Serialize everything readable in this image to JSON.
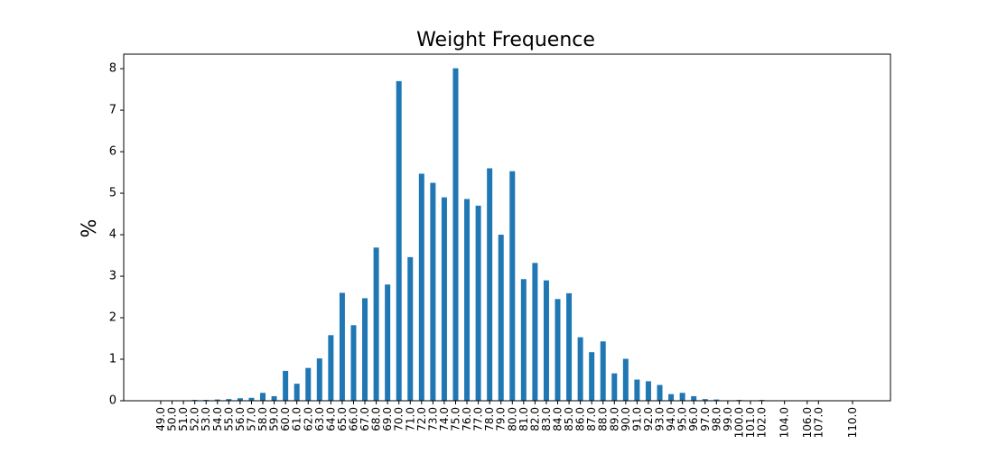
{
  "chart_data": {
    "type": "bar",
    "title": "Weight Frequence",
    "xlabel": "",
    "ylabel": "%",
    "ylim": [
      0,
      8.35
    ],
    "yticks": [
      "0",
      "1",
      "2",
      "3",
      "4",
      "5",
      "6",
      "7",
      "8"
    ],
    "grid": false,
    "legend": "none",
    "bar_color": "#1f77b4",
    "categories": [
      "49.0",
      "50.0",
      "51.0",
      "52.0",
      "53.0",
      "54.0",
      "55.0",
      "56.0",
      "57.0",
      "58.0",
      "59.0",
      "60.0",
      "61.0",
      "62.0",
      "63.0",
      "64.0",
      "65.0",
      "66.0",
      "67.0",
      "68.0",
      "69.0",
      "70.0",
      "71.0",
      "72.0",
      "73.0",
      "74.0",
      "75.0",
      "76.0",
      "77.0",
      "78.0",
      "79.0",
      "80.0",
      "81.0",
      "82.0",
      "83.0",
      "84.0",
      "85.0",
      "86.0",
      "87.0",
      "88.0",
      "89.0",
      "90.0",
      "91.0",
      "92.0",
      "93.0",
      "94.0",
      "95.0",
      "96.0",
      "97.0",
      "98.0",
      "99.0",
      "100.0",
      "101.0",
      "102.0",
      "104.0",
      "106.0",
      "107.0",
      "110.0"
    ],
    "values": [
      0.01,
      0.01,
      0.01,
      0.02,
      0.02,
      0.03,
      0.04,
      0.06,
      0.07,
      0.19,
      0.11,
      0.72,
      0.41,
      0.79,
      1.02,
      1.58,
      2.6,
      1.82,
      2.47,
      3.69,
      2.8,
      7.7,
      3.46,
      5.47,
      5.25,
      4.9,
      8.01,
      4.86,
      4.7,
      5.6,
      4.0,
      5.53,
      2.93,
      3.32,
      2.9,
      2.45,
      2.59,
      1.53,
      1.17,
      1.43,
      0.66,
      1.01,
      0.51,
      0.47,
      0.38,
      0.16,
      0.19,
      0.11,
      0.04,
      0.03,
      0.01,
      0.02,
      0.01,
      0.02,
      0.01,
      0.01,
      0.01,
      0.01
    ]
  }
}
